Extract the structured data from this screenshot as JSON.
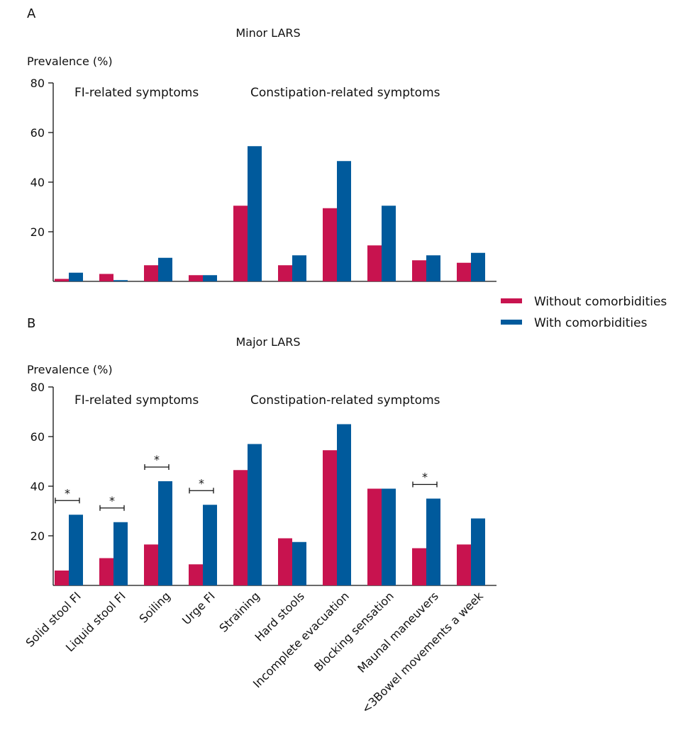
{
  "chart_data": [
    {
      "type": "bar",
      "panel": "A",
      "title": "Minor  LARS",
      "ylabel": "Prevalence (%)",
      "ylim": [
        0,
        80
      ],
      "yticks": [
        20,
        40,
        60,
        80
      ],
      "group_labels": [
        "FI-related symptoms",
        "Constipation-related symptoms"
      ],
      "categories": [
        "Solid stool FI",
        "Liquid stool FI",
        "Soiling",
        "Urge FI",
        "Straining",
        "Hard stools",
        "Incomplete evacuation",
        "Blocking sensation",
        "Maunal maneuvers",
        "<3Bowel movements a week"
      ],
      "series": [
        {
          "name": "Without comorbidities",
          "color": "#c8134f",
          "values": [
            1,
            3,
            6.5,
            2.5,
            30.5,
            6.5,
            29.5,
            14.5,
            8.5,
            7.5
          ]
        },
        {
          "name": "With comorbidities",
          "color": "#005a9c",
          "values": [
            3.5,
            0.5,
            9.5,
            2.5,
            54.5,
            10.5,
            48.5,
            30.5,
            10.5,
            11.5
          ]
        }
      ],
      "significance": []
    },
    {
      "type": "bar",
      "panel": "B",
      "title": "Major LARS",
      "ylabel": "Prevalence (%)",
      "ylim": [
        0,
        80
      ],
      "yticks": [
        20,
        40,
        60,
        80
      ],
      "group_labels": [
        "FI-related symptoms",
        "Constipation-related symptoms"
      ],
      "categories": [
        "Solid stool FI",
        "Liquid stool FI",
        "Soiling",
        "Urge FI",
        "Straining",
        "Hard stools",
        "Incomplete evacuation",
        "Blocking sensation",
        "Maunal maneuvers",
        "<3Bowel movements a week"
      ],
      "series": [
        {
          "name": "Without comorbidities",
          "color": "#c8134f",
          "values": [
            6,
            11,
            16.5,
            8.5,
            46.5,
            19,
            54.5,
            39,
            15,
            16.5
          ]
        },
        {
          "name": "With comorbidities",
          "color": "#005a9c",
          "values": [
            28.5,
            25.5,
            42,
            32.5,
            57,
            17.5,
            65,
            39,
            35,
            27
          ]
        }
      ],
      "significance": [
        {
          "category": 0,
          "marker": "*"
        },
        {
          "category": 1,
          "marker": "*"
        },
        {
          "category": 2,
          "marker": "*"
        },
        {
          "category": 3,
          "marker": "*"
        },
        {
          "category": 8,
          "marker": "*"
        }
      ]
    }
  ],
  "legend": {
    "items": [
      {
        "label": "Without comorbidities",
        "color": "#c8134f"
      },
      {
        "label": "With comorbidities",
        "color": "#005a9c"
      }
    ]
  }
}
